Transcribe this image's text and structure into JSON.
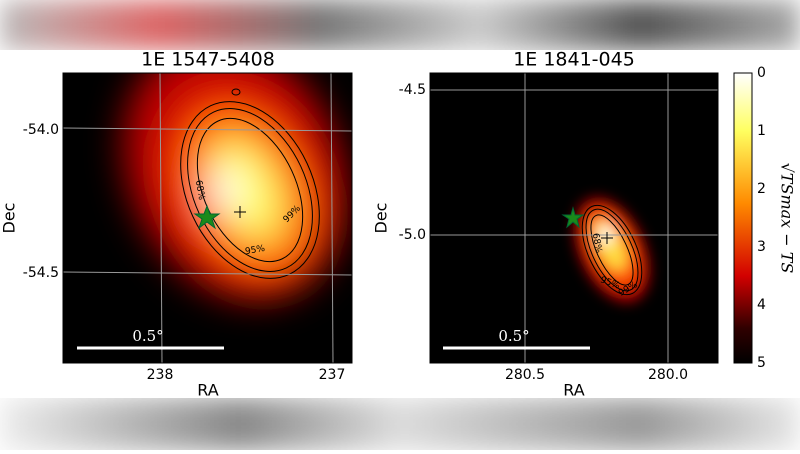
{
  "panels": [
    {
      "title": "1E 1547-5408",
      "xlabel": "RA",
      "ylabel": "Dec",
      "xticks": [
        "238",
        "237"
      ],
      "yticks": [
        "-54.0",
        "-54.5"
      ],
      "scale_label": "0.5°",
      "contour_labels": [
        "68%",
        "95%",
        "99%"
      ]
    },
    {
      "title": "1E 1841-045",
      "xlabel": "RA",
      "ylabel": "Dec",
      "xticks": [
        "280.5",
        "280.0"
      ],
      "yticks": [
        "-4.5",
        "-5.0"
      ],
      "scale_label": "0.5°",
      "contour_labels": [
        "68%",
        "95%",
        "99%"
      ]
    }
  ],
  "colorbar": {
    "label": "√TSmax − TS",
    "ticks": [
      "0",
      "1",
      "2",
      "3",
      "4",
      "5"
    ]
  }
}
